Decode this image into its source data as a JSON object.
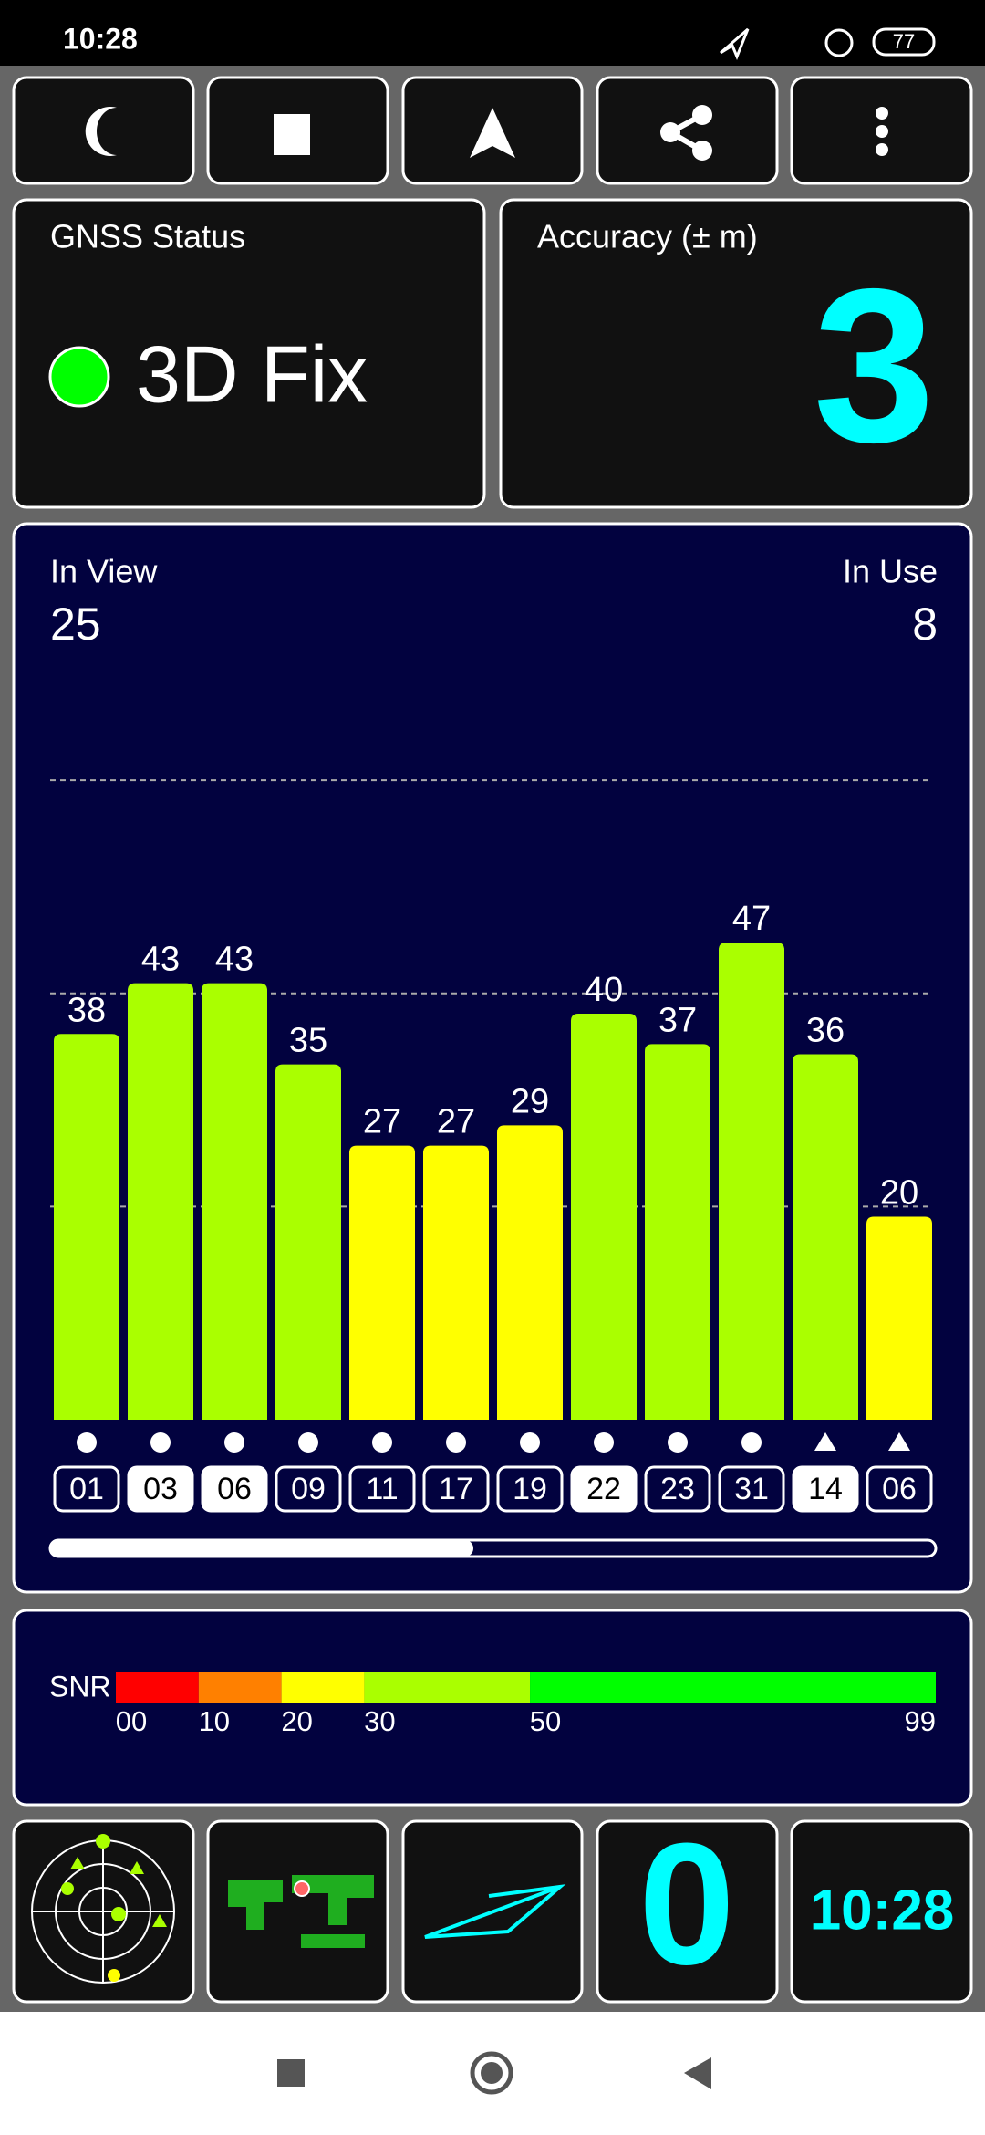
{
  "status_bar": {
    "time": "10:28",
    "battery": "77"
  },
  "gnss_status": {
    "title": "GNSS Status",
    "fix": "3D Fix"
  },
  "accuracy": {
    "title": "Accuracy (± m)",
    "value": "3"
  },
  "satellites": {
    "in_view_label": "In View",
    "in_view": "25",
    "in_use_label": "In Use",
    "in_use": "8",
    "ylim": [
      0,
      64
    ],
    "gridlines": [
      21,
      42,
      63
    ],
    "ids": [
      "01",
      "03",
      "06",
      "09",
      "11",
      "17",
      "19",
      "22",
      "23",
      "31",
      "14",
      "06"
    ],
    "values": [
      38,
      43,
      43,
      35,
      27,
      27,
      29,
      40,
      37,
      47,
      36,
      20
    ],
    "used": [
      false,
      true,
      true,
      false,
      false,
      false,
      false,
      true,
      false,
      false,
      true,
      false
    ],
    "markers": [
      "circle",
      "circle",
      "circle",
      "circle",
      "circle",
      "circle",
      "circle",
      "circle",
      "circle",
      "circle",
      "triangle",
      "triangle"
    ]
  },
  "snr": {
    "label": "SNR",
    "xlim": [
      0,
      99
    ],
    "segments": [
      {
        "from": 0,
        "to": 10,
        "color": "#ff0000"
      },
      {
        "from": 10,
        "to": 20,
        "color": "#ff8000"
      },
      {
        "from": 20,
        "to": 30,
        "color": "#ffff00"
      },
      {
        "from": 30,
        "to": 50,
        "color": "#aaff00"
      },
      {
        "from": 50,
        "to": 99,
        "color": "#00ff00"
      }
    ],
    "ticks": [
      {
        "value": 0,
        "label": "00"
      },
      10,
      20,
      30,
      50,
      99
    ]
  },
  "tiles": {
    "satellites_count": "0",
    "clock": "10:28"
  }
}
